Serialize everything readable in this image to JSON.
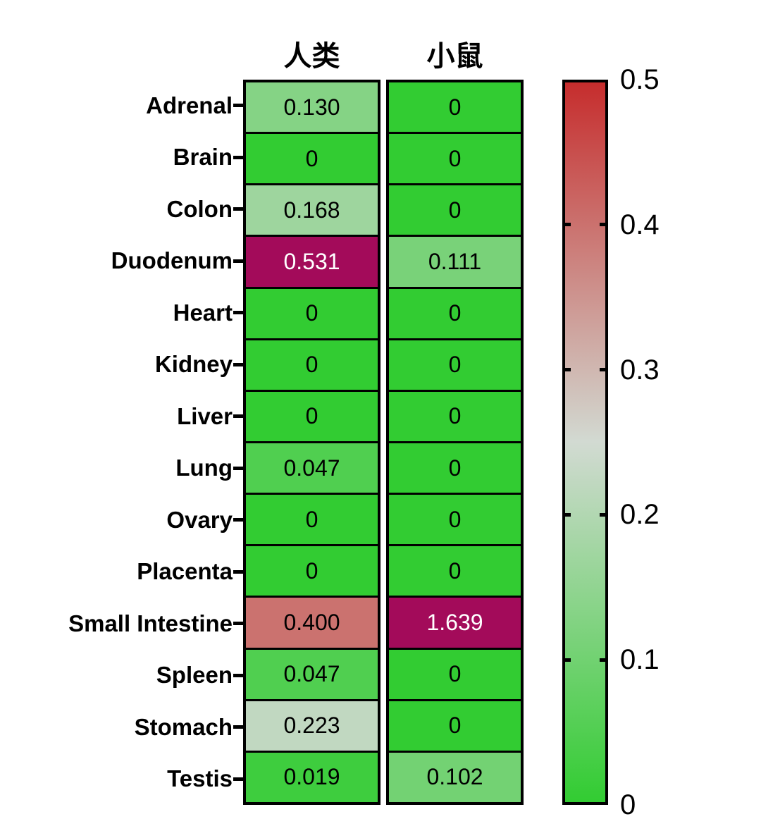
{
  "chart_data": {
    "type": "heatmap",
    "title": "",
    "columns": [
      "人类",
      "小鼠"
    ],
    "rows": [
      "Adrenal",
      "Brain",
      "Colon",
      "Duodenum",
      "Heart",
      "Kidney",
      "Liver",
      "Lung",
      "Ovary",
      "Placenta",
      "Small Intestine",
      "Spleen",
      "Stomach",
      "Testis"
    ],
    "series": [
      {
        "name": "人类",
        "values": [
          0.13,
          0,
          0.168,
          0.531,
          0,
          0,
          0,
          0.047,
          0,
          0,
          0.4,
          0.047,
          0.223,
          0.019
        ],
        "labels": [
          "0.130",
          "0",
          "0.168",
          "0.531",
          "0",
          "0",
          "0",
          "0.047",
          "0",
          "0",
          "0.400",
          "0.047",
          "0.223",
          "0.019"
        ]
      },
      {
        "name": "小鼠",
        "values": [
          0,
          0,
          0,
          0.111,
          0,
          0,
          0,
          0,
          0,
          0,
          1.639,
          0,
          0,
          0.102
        ],
        "labels": [
          "0",
          "0",
          "0",
          "0.111",
          "0",
          "0",
          "0",
          "0",
          "0",
          "0",
          "1.639",
          "0",
          "0",
          "0.102"
        ]
      }
    ],
    "colorbar": {
      "min": 0,
      "max": 0.5,
      "ticks": [
        {
          "label": "0.5",
          "value": 0.5
        },
        {
          "label": "0.4",
          "value": 0.4
        },
        {
          "label": "0.3",
          "value": 0.3
        },
        {
          "label": "0.2",
          "value": 0.2
        },
        {
          "label": "0.1",
          "value": 0.1
        },
        {
          "label": "0",
          "value": 0
        }
      ],
      "position": "right"
    },
    "colormap": {
      "stops": [
        [
          0,
          "#32CC32"
        ],
        [
          0.25,
          "#D2DAD2"
        ],
        [
          0.5,
          "#C62D2D"
        ]
      ],
      "over_color": "#A30B5A",
      "text_color": "#000000",
      "over_text_color": "#FFFFFF"
    },
    "layout": {
      "grid": false,
      "cell_border_color": "#000000",
      "background": "#FFFFFF",
      "row_axis_side": "left",
      "column_headers_position": "top"
    }
  }
}
